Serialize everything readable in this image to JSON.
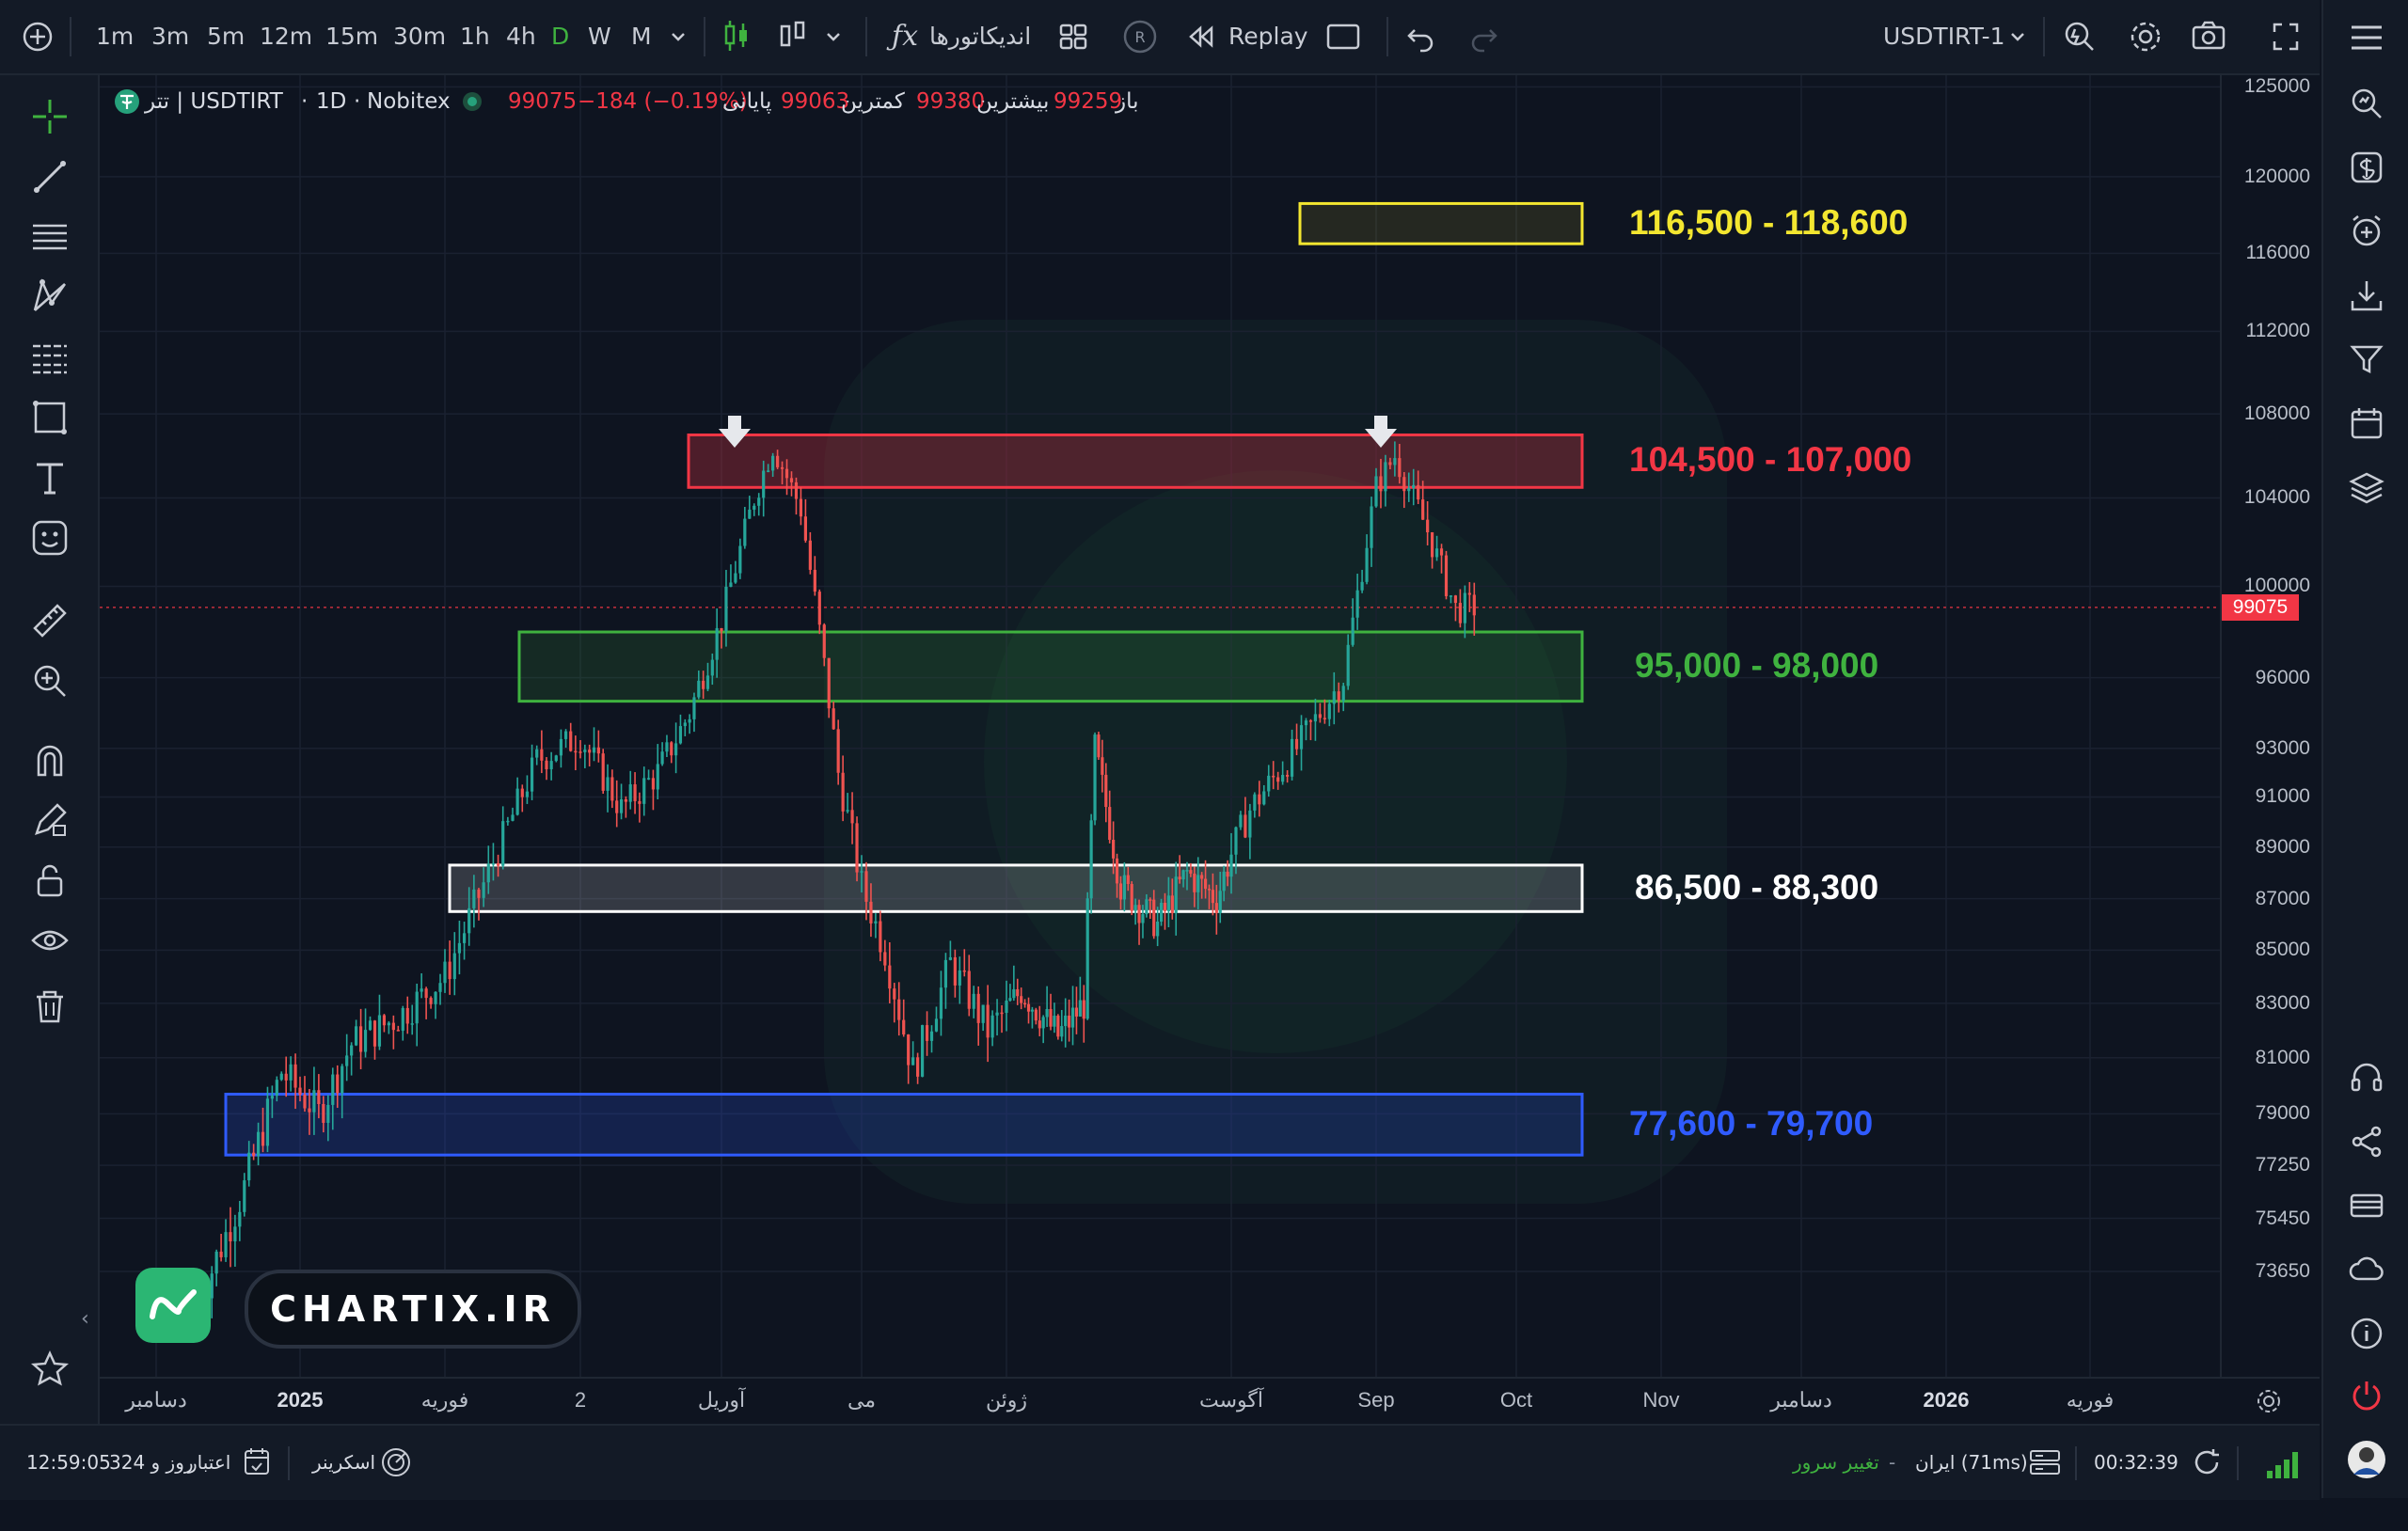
{
  "toolbar": {
    "timeframes": [
      "1m",
      "3m",
      "5m",
      "12m",
      "15m",
      "30m",
      "1h",
      "4h",
      "D",
      "W",
      "M"
    ],
    "active_timeframe": "D",
    "indicators_label": "اندیکاتورها",
    "replay_label": "Replay",
    "symbol": "USDTIRT-1"
  },
  "legend": {
    "symbol_name": "تتر | USDTIRT",
    "interval": "1D",
    "exchange": "Nobitex",
    "open_label": "باز",
    "open_value": "99259",
    "high_label": "بیشترین",
    "high_value": "99380",
    "low_label": "کمترین",
    "low_value": "99063",
    "close_label": "پایانی",
    "close_value": "99075",
    "change": "−184 (−0.19%)"
  },
  "price_axis": {
    "labels": [
      "125000",
      "120000",
      "116000",
      "112000",
      "108000",
      "104000",
      "100000",
      "96000",
      "93000",
      "91000",
      "89000",
      "87000",
      "85000",
      "83000",
      "81000",
      "79000",
      "77250",
      "75450",
      "73650"
    ],
    "current_price": "99075",
    "current_price_color": "#f23645"
  },
  "time_axis": {
    "labels": [
      "دسامبر",
      "2025",
      "فوریه",
      "2",
      "آوریل",
      "می",
      "ژوئن",
      "آگوست",
      "Sep",
      "Oct",
      "Nov",
      "دسامبر",
      "2026",
      "فوریه"
    ]
  },
  "zones": [
    {
      "label": "116,500 - 118,600",
      "color": "#f3e630",
      "fill": "rgba(243,230,48,0.10)",
      "low": 116500,
      "high": 118600
    },
    {
      "label": "104,500 - 107,000",
      "color": "#f23645",
      "fill": "rgba(242,54,69,0.28)",
      "low": 104500,
      "high": 107000
    },
    {
      "label": "95,000 - 98,000",
      "color": "#3fb23f",
      "fill": "rgba(63,178,63,0.14)",
      "low": 95000,
      "high": 98000
    },
    {
      "label": "86,500 - 88,300",
      "color": "#ffffff",
      "fill": "rgba(255,255,255,0.16)",
      "low": 86500,
      "high": 88300
    },
    {
      "label": "77,600 - 79,700",
      "color": "#2f5bff",
      "fill": "rgba(47,91,255,0.20)",
      "low": 77600,
      "high": 79700
    }
  ],
  "watermark": {
    "text": "CHARTIX.IR"
  },
  "bottom_bar": {
    "timer": "12:59:05",
    "credit": "324 روز و",
    "credit_label": "اعتبار",
    "screener_label": "اسکرینر",
    "change_server": "تغییر سرور",
    "server": "ایران (71ms)",
    "clock": "00:32:39"
  },
  "chart_data": {
    "type": "candlestick",
    "symbol": "USDTIRT",
    "interval": "1D",
    "series_path": [
      [
        "2024-12-10",
        72500
      ],
      [
        "2024-12-20",
        76500
      ],
      [
        "2024-12-28",
        80500
      ],
      [
        "2025-01-05",
        79000
      ],
      [
        "2025-01-12",
        81500
      ],
      [
        "2025-01-22",
        82500
      ],
      [
        "2025-02-01",
        84000
      ],
      [
        "2025-02-10",
        88000
      ],
      [
        "2025-02-20",
        92500
      ],
      [
        "2025-03-01",
        93500
      ],
      [
        "2025-03-10",
        90500
      ],
      [
        "2025-03-18",
        92000
      ],
      [
        "2025-03-25",
        94500
      ],
      [
        "2025-04-01",
        98500
      ],
      [
        "2025-04-08",
        104000
      ],
      [
        "2025-04-12",
        106500
      ],
      [
        "2025-04-18",
        103500
      ],
      [
        "2025-04-22",
        98000
      ],
      [
        "2025-04-26",
        92000
      ],
      [
        "2025-05-01",
        87500
      ],
      [
        "2025-05-06",
        85000
      ],
      [
        "2025-05-12",
        80500
      ],
      [
        "2025-05-20",
        84500
      ],
      [
        "2025-05-28",
        82000
      ],
      [
        "2025-06-05",
        83500
      ],
      [
        "2025-06-15",
        81800
      ],
      [
        "2025-06-22",
        83000
      ],
      [
        "2025-06-25",
        93000
      ],
      [
        "2025-07-02",
        87500
      ],
      [
        "2025-07-12",
        86000
      ],
      [
        "2025-07-20",
        88000
      ],
      [
        "2025-07-28",
        87000
      ],
      [
        "2025-08-05",
        90500
      ],
      [
        "2025-08-15",
        93000
      ],
      [
        "2025-08-25",
        96000
      ],
      [
        "2025-09-01",
        104500
      ],
      [
        "2025-09-05",
        106000
      ],
      [
        "2025-09-12",
        102500
      ],
      [
        "2025-09-18",
        99000
      ],
      [
        "2025-09-22",
        99075
      ]
    ],
    "highlighted_highs": [
      106800,
      106500
    ],
    "current_price": 99075,
    "ylim": [
      72800,
      126000
    ]
  }
}
